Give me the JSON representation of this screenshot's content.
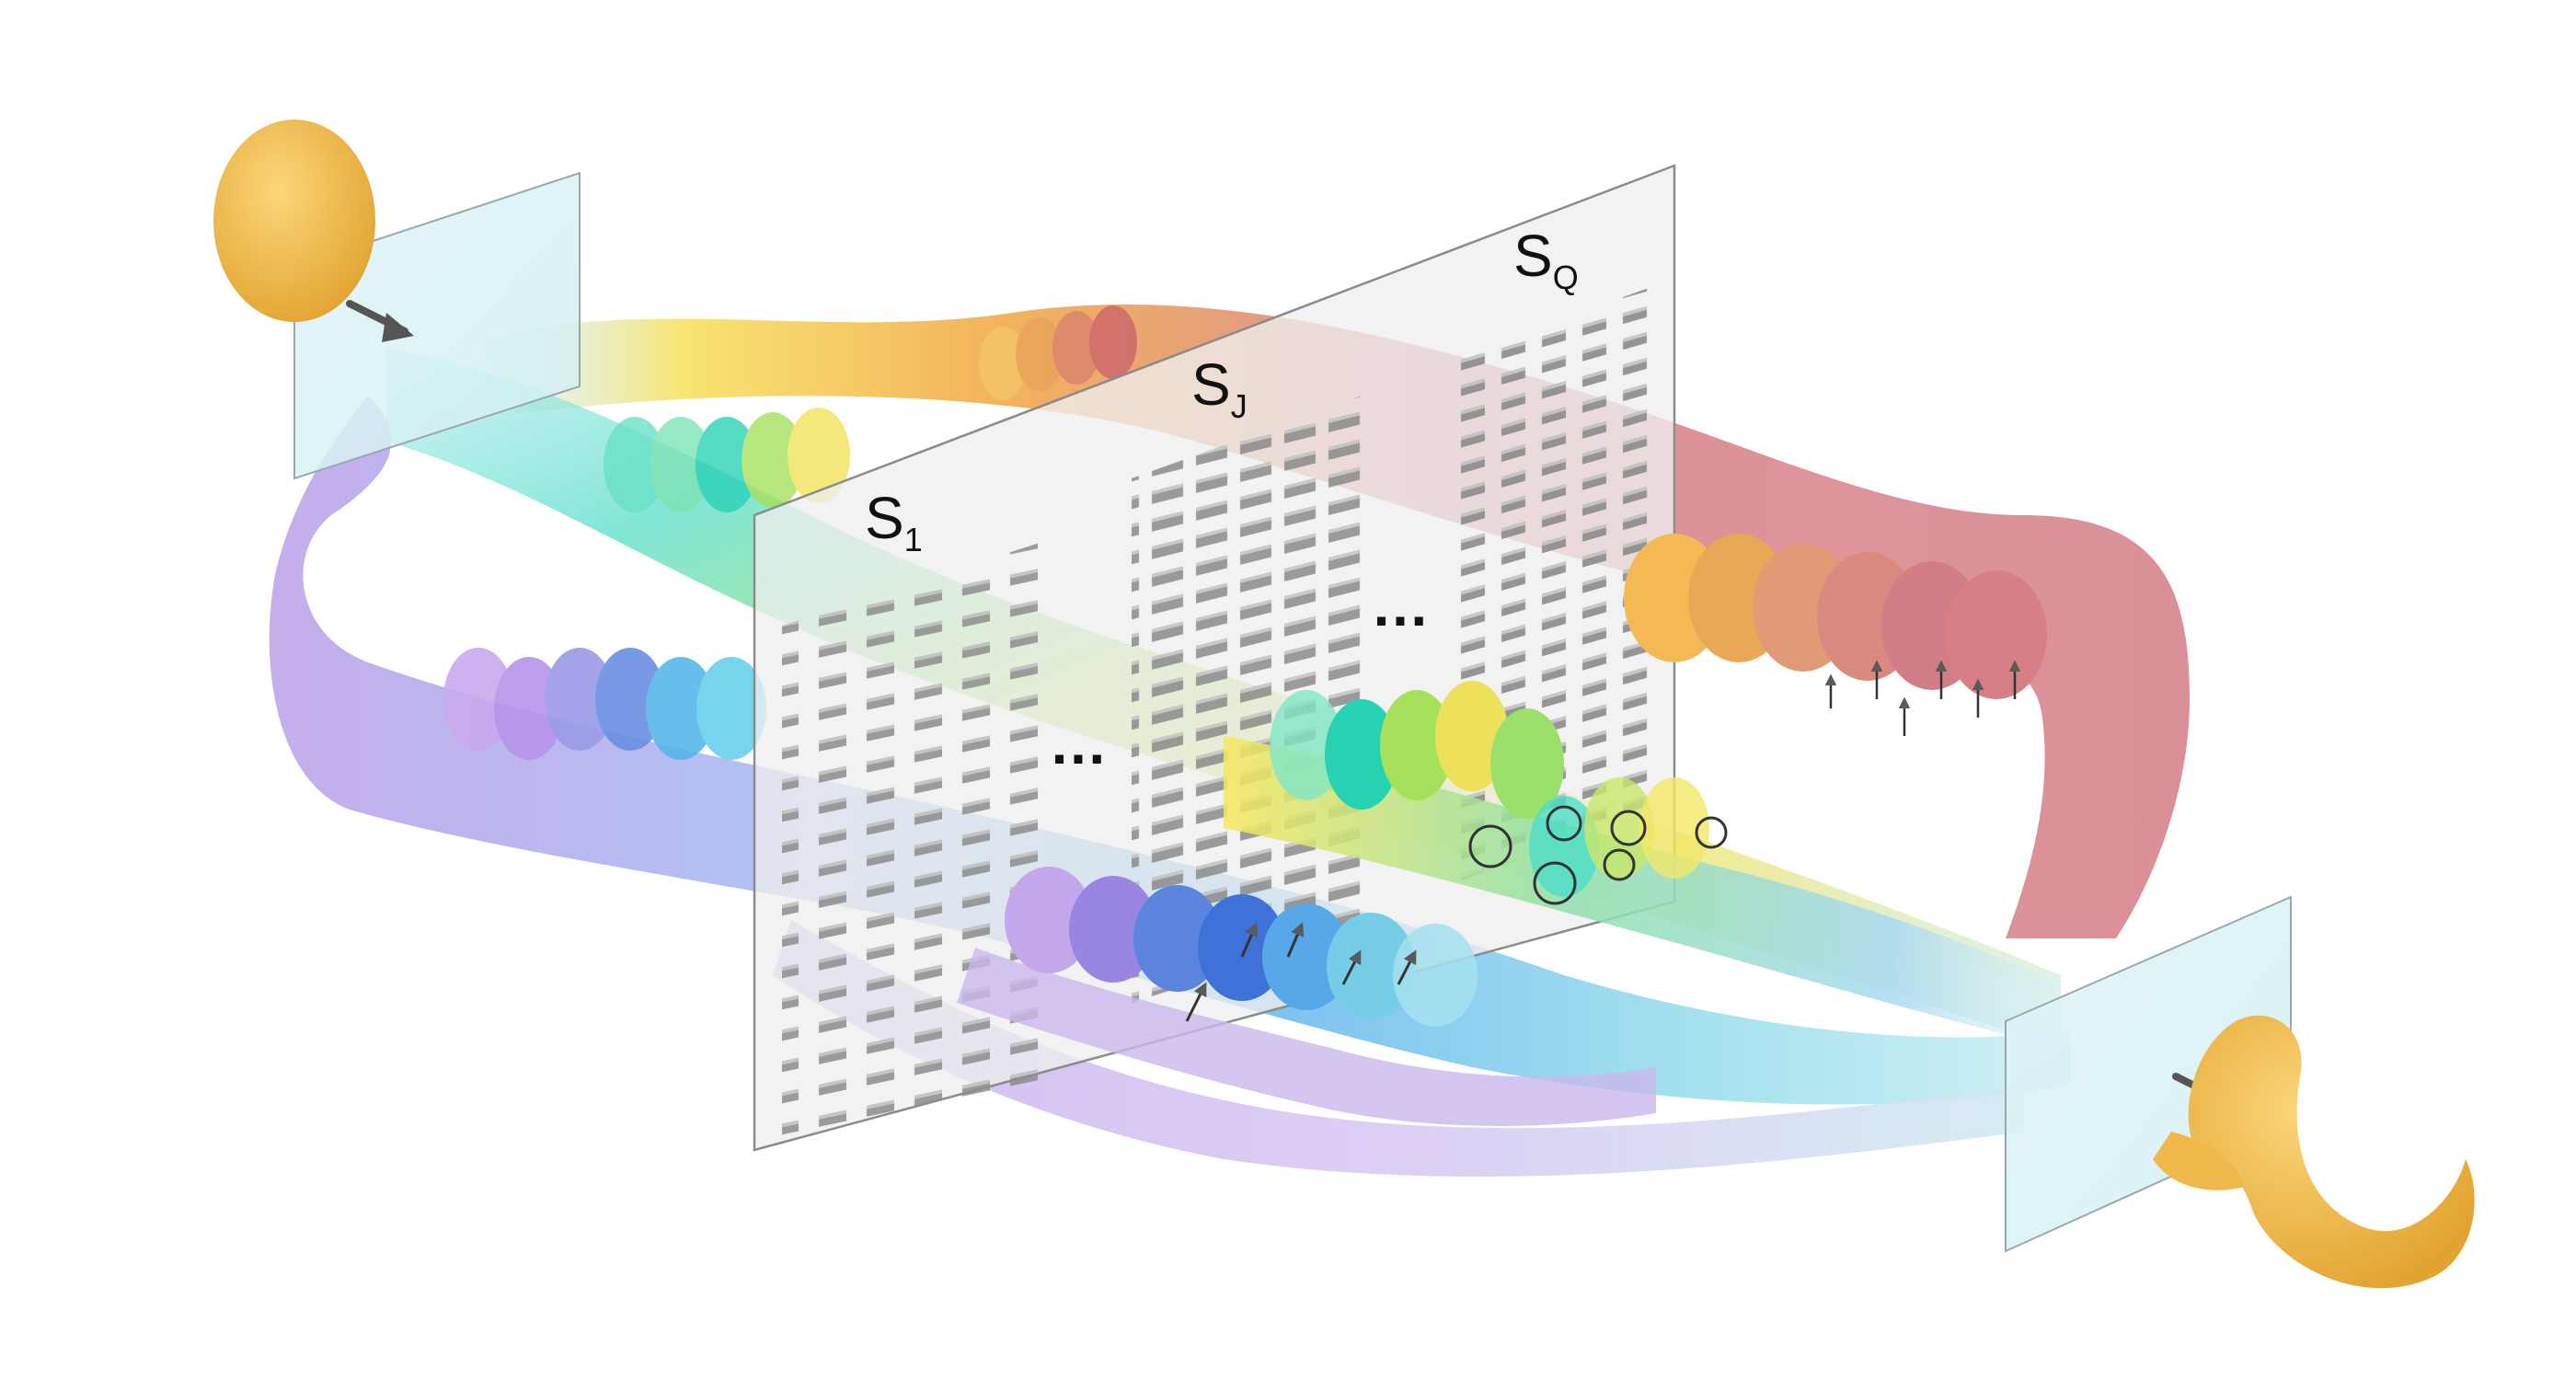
{
  "labels": {
    "s1_main": "S",
    "s1_sub": "1",
    "sj_main": "S",
    "sj_sub": "J",
    "sq_main": "S",
    "sq_sub": "Q",
    "ellipsis": "…"
  },
  "colors": {
    "beam_red": "#d98a8f",
    "beam_orange": "#f2b04a",
    "beam_yellow": "#f4e55a",
    "beam_green": "#8fdc8a",
    "beam_cyan": "#6fe0d0",
    "beam_blue": "#4c7fe0",
    "beam_violet": "#b89be6",
    "metasurface": "#d8dadc",
    "nanopillar": "#8a8a8a",
    "input_pulse": "#f0b23c",
    "glass_plate": "#d9f1f4"
  }
}
